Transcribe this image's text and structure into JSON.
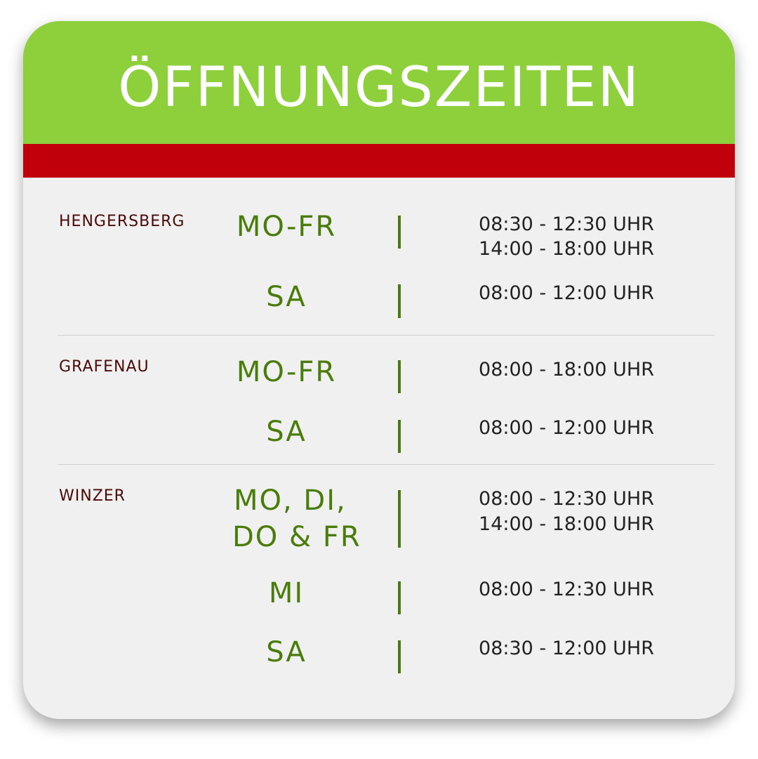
{
  "title": "ÖFFNUNGSZEITEN",
  "colors": {
    "header": "#8ecf3c",
    "band": "#c0000b",
    "location": "#4a0a0a",
    "days": "#4a7c0b",
    "body": "#f0f0f0"
  },
  "locations": [
    {
      "name": "HENGERSBERG",
      "rows": [
        {
          "days": "MO-FR",
          "times": [
            "08:30 - 12:30 UHR",
            "14:00 - 18:00 UHR"
          ]
        },
        {
          "days": "SA",
          "times": [
            "08:00 - 12:00 UHR"
          ]
        }
      ]
    },
    {
      "name": "GRAFENAU",
      "rows": [
        {
          "days": "MO-FR",
          "times": [
            "08:00 - 18:00 UHR"
          ]
        },
        {
          "days": "SA",
          "times": [
            "08:00 - 12:00 UHR"
          ]
        }
      ]
    },
    {
      "name": "WINZER",
      "rows": [
        {
          "days": [
            "MO, DI,",
            "DO & FR"
          ],
          "times": [
            "08:00 - 12:30 UHR",
            "14:00 - 18:00 UHR"
          ]
        },
        {
          "days": "MI",
          "times": [
            "08:00 - 12:30 UHR"
          ]
        },
        {
          "days": "SA",
          "times": [
            "08:30 - 12:00 UHR"
          ]
        }
      ]
    }
  ]
}
